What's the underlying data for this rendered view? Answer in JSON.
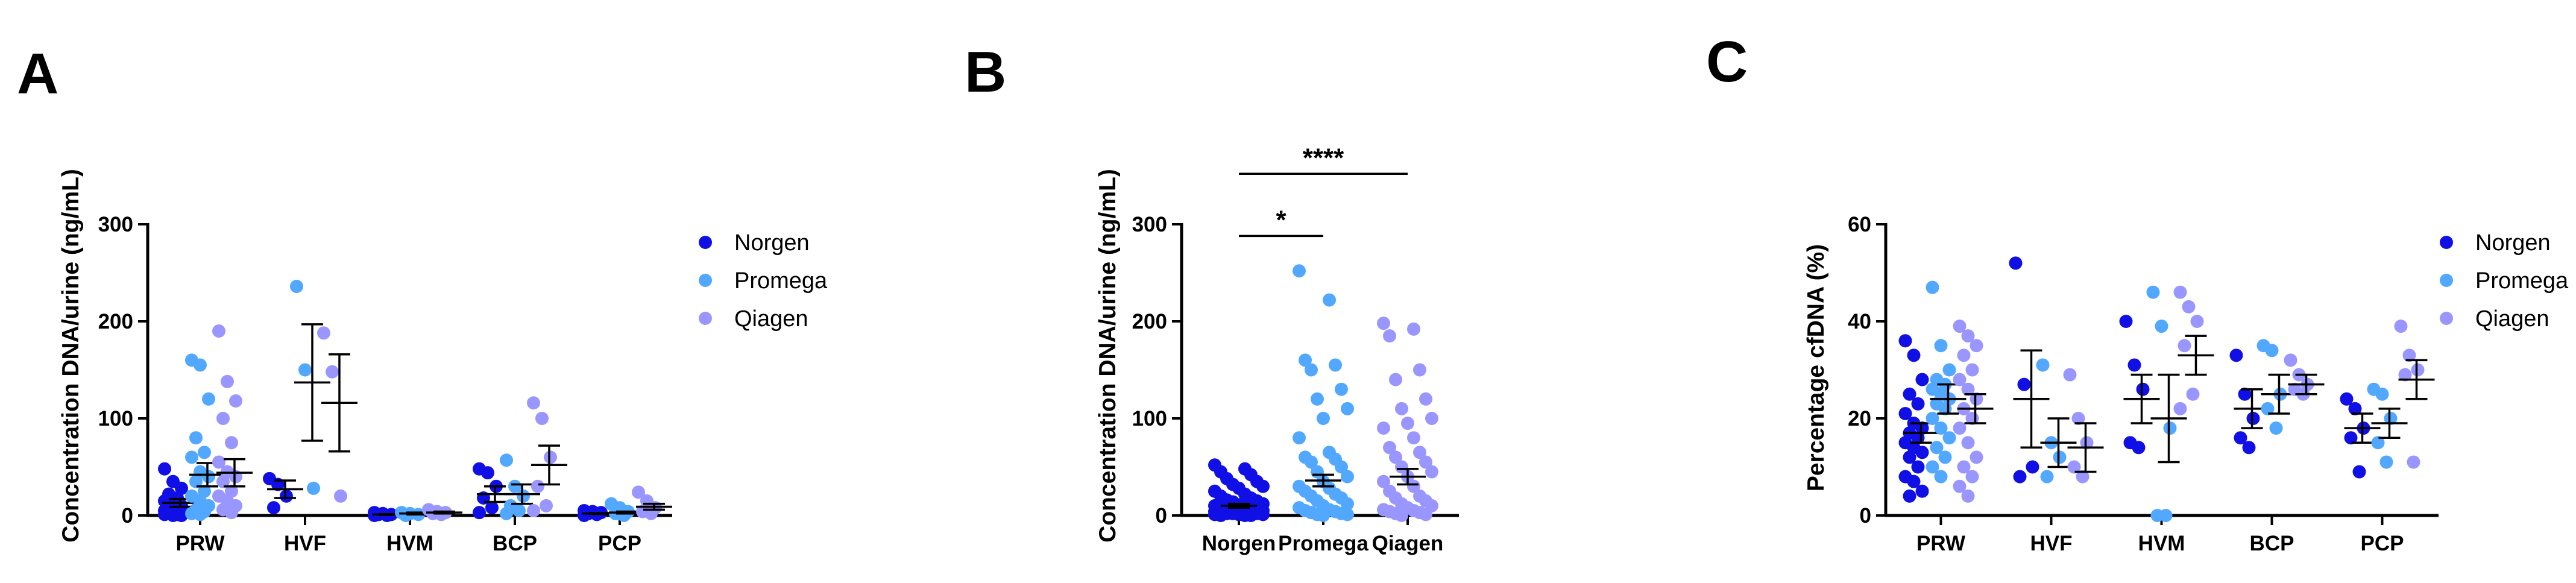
{
  "colors": {
    "Norgen": "#1010e6",
    "Promega": "#52a8ff",
    "Qiagen": "#9a96ff"
  },
  "chart_data": [
    {
      "panel": "A",
      "type": "scatter",
      "ylabel": "Concentration DNA/urine (ng/mL)",
      "ylim": [
        0,
        300
      ],
      "yticks": [
        0,
        100,
        200,
        300
      ],
      "categories": [
        "PRW",
        "HVF",
        "HVM",
        "BCP",
        "PCP"
      ],
      "legend": [
        "Norgen",
        "Promega",
        "Qiagen"
      ],
      "legend_position": "right",
      "series": [
        {
          "name": "Norgen",
          "summary": [
            {
              "category": "PRW",
              "mean": 13,
              "sem": 4
            },
            {
              "category": "HVF",
              "mean": 27,
              "sem": 9
            },
            {
              "category": "HVM",
              "mean": 1,
              "sem": 0.5
            },
            {
              "category": "BCP",
              "mean": 22,
              "sem": 8
            },
            {
              "category": "PCP",
              "mean": 2,
              "sem": 0.5
            }
          ],
          "points": {
            "PRW": [
              48,
              35,
              28,
              22,
              18,
              15,
              12,
              10,
              8,
              6,
              5,
              4,
              3,
              2,
              1,
              1,
              0,
              0
            ],
            "HVF": [
              38,
              32,
              20,
              8
            ],
            "HVM": [
              3,
              2,
              1,
              1,
              0,
              0
            ],
            "BCP": [
              48,
              44,
              30,
              18,
              8,
              3
            ],
            "PCP": [
              5,
              4,
              3,
              2,
              1,
              0
            ]
          }
        },
        {
          "name": "Promega",
          "summary": [
            {
              "category": "PRW",
              "mean": 42,
              "sem": 12
            },
            {
              "category": "HVF",
              "mean": 137,
              "sem": 60
            },
            {
              "category": "HVM",
              "mean": 2,
              "sem": 1
            },
            {
              "category": "BCP",
              "mean": 22,
              "sem": 10
            },
            {
              "category": "PCP",
              "mean": 3,
              "sem": 1
            }
          ],
          "points": {
            "PRW": [
              160,
              155,
              120,
              80,
              65,
              60,
              45,
              40,
              35,
              25,
              20,
              15,
              10,
              6,
              4,
              2,
              1
            ],
            "HVF": [
              236,
              150,
              28
            ],
            "HVM": [
              3,
              2,
              1,
              0
            ],
            "BCP": [
              57,
              30,
              20,
              10,
              5,
              2
            ],
            "PCP": [
              12,
              8,
              4,
              2,
              0
            ]
          }
        },
        {
          "name": "Qiagen",
          "summary": [
            {
              "category": "PRW",
              "mean": 44,
              "sem": 14
            },
            {
              "category": "HVF",
              "mean": 116,
              "sem": 50
            },
            {
              "category": "HVM",
              "mean": 3,
              "sem": 1
            },
            {
              "category": "BCP",
              "mean": 52,
              "sem": 20
            },
            {
              "category": "PCP",
              "mean": 9,
              "sem": 3
            }
          ],
          "points": {
            "PRW": [
              190,
              138,
              118,
              100,
              75,
              55,
              45,
              40,
              35,
              25,
              20,
              15,
              10,
              6,
              3
            ],
            "HVF": [
              188,
              148,
              20
            ],
            "HVM": [
              6,
              4,
              3,
              2,
              1
            ],
            "BCP": [
              116,
              100,
              60,
              30,
              10,
              5
            ],
            "PCP": [
              24,
              15,
              8,
              4,
              2
            ]
          }
        }
      ]
    },
    {
      "panel": "B",
      "type": "scatter",
      "ylabel": "Concentration DNA/urine (ng/mL)",
      "ylim": [
        0,
        300
      ],
      "yticks": [
        0,
        100,
        200,
        300
      ],
      "categories": [
        "Norgen",
        "Promega",
        "Qiagen"
      ],
      "series": [
        {
          "name": "Norgen",
          "mean": 10,
          "sem": 2,
          "points": [
            52,
            48,
            45,
            42,
            38,
            35,
            32,
            30,
            28,
            25,
            22,
            20,
            18,
            16,
            15,
            14,
            12,
            11,
            10,
            9,
            8,
            8,
            7,
            6,
            6,
            5,
            5,
            4,
            4,
            3,
            3,
            2,
            2,
            2,
            1,
            1,
            1,
            0,
            0,
            0
          ]
        },
        {
          "name": "Promega",
          "mean": 36,
          "sem": 6,
          "points": [
            252,
            222,
            160,
            155,
            150,
            130,
            120,
            110,
            100,
            80,
            65,
            60,
            58,
            55,
            50,
            45,
            40,
            35,
            30,
            28,
            25,
            22,
            20,
            18,
            15,
            12,
            10,
            8,
            6,
            5,
            4,
            3,
            2,
            1,
            1,
            0
          ]
        },
        {
          "name": "Qiagen",
          "mean": 40,
          "sem": 8,
          "points": [
            198,
            192,
            185,
            150,
            140,
            120,
            110,
            100,
            95,
            90,
            80,
            70,
            65,
            60,
            55,
            50,
            45,
            40,
            35,
            30,
            25,
            20,
            18,
            15,
            12,
            10,
            8,
            6,
            5,
            4,
            3,
            2,
            1,
            0
          ]
        }
      ],
      "annotations": [
        {
          "label": "*",
          "from": "Norgen",
          "to": "Promega",
          "y": 288
        },
        {
          "label": "****",
          "from": "Norgen",
          "to": "Qiagen",
          "y": 352
        }
      ]
    },
    {
      "panel": "C",
      "type": "scatter",
      "ylabel": "Percentage cfDNA (%)",
      "ylim": [
        0,
        60
      ],
      "yticks": [
        0,
        20,
        40,
        60
      ],
      "categories": [
        "PRW",
        "HVF",
        "HVM",
        "BCP",
        "PCP"
      ],
      "legend": [
        "Norgen",
        "Promega",
        "Qiagen"
      ],
      "legend_position": "right",
      "series": [
        {
          "name": "Norgen",
          "summary": [
            {
              "category": "PRW",
              "mean": 17,
              "sem": 2
            },
            {
              "category": "HVF",
              "mean": 24,
              "sem": 10
            },
            {
              "category": "HVM",
              "mean": 24,
              "sem": 5
            },
            {
              "category": "BCP",
              "mean": 22,
              "sem": 4
            },
            {
              "category": "PCP",
              "mean": 18,
              "sem": 3
            }
          ],
          "points": {
            "PRW": [
              36,
              33,
              28,
              25,
              23,
              21,
              19,
              18,
              17,
              16,
              15,
              14,
              13,
              12,
              10,
              8,
              7,
              5,
              4
            ],
            "HVF": [
              52,
              27,
              10,
              8
            ],
            "HVM": [
              40,
              31,
              26,
              15,
              14
            ],
            "BCP": [
              33,
              25,
              20,
              16,
              14
            ],
            "PCP": [
              24,
              22,
              18,
              16,
              9
            ]
          }
        },
        {
          "name": "Promega",
          "summary": [
            {
              "category": "PRW",
              "mean": 24,
              "sem": 3
            },
            {
              "category": "HVF",
              "mean": 15,
              "sem": 5
            },
            {
              "category": "HVM",
              "mean": 20,
              "sem": 9
            },
            {
              "category": "BCP",
              "mean": 25,
              "sem": 4
            },
            {
              "category": "PCP",
              "mean": 19,
              "sem": 3
            }
          ],
          "points": {
            "PRW": [
              47,
              35,
              30,
              28,
              27,
              26,
              25,
              24,
              23,
              22,
              20,
              18,
              16,
              14,
              12,
              10,
              8
            ],
            "HVF": [
              31,
              15,
              12,
              8
            ],
            "HVM": [
              46,
              39,
              18,
              0,
              0
            ],
            "BCP": [
              35,
              34,
              25,
              22,
              18
            ],
            "PCP": [
              26,
              25,
              20,
              15,
              11
            ]
          }
        },
        {
          "name": "Qiagen",
          "summary": [
            {
              "category": "PRW",
              "mean": 22,
              "sem": 3
            },
            {
              "category": "HVF",
              "mean": 14,
              "sem": 5
            },
            {
              "category": "HVM",
              "mean": 33,
              "sem": 4
            },
            {
              "category": "BCP",
              "mean": 27,
              "sem": 2
            },
            {
              "category": "PCP",
              "mean": 28,
              "sem": 4
            }
          ],
          "points": {
            "PRW": [
              39,
              37,
              35,
              33,
              30,
              28,
              26,
              24,
              22,
              20,
              18,
              15,
              12,
              10,
              8,
              6,
              4
            ],
            "HVF": [
              29,
              20,
              15,
              10,
              8
            ],
            "HVM": [
              46,
              43,
              40,
              35,
              25,
              22
            ],
            "BCP": [
              32,
              29,
              27,
              26,
              25
            ],
            "PCP": [
              39,
              33,
              30,
              29,
              11
            ]
          }
        }
      ]
    }
  ]
}
